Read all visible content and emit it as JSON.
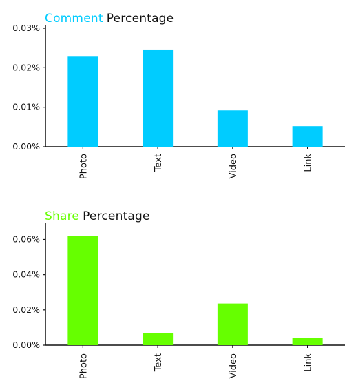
{
  "chart_data": [
    {
      "type": "bar",
      "title_accent": "Comment",
      "title_rest": "Percentage",
      "accent_color": "#00ccff",
      "categories": [
        "Photo",
        "Text",
        "Video",
        "Link"
      ],
      "values": [
        0.0228,
        0.0246,
        0.0092,
        0.0052
      ],
      "ylim": [
        0,
        0.03
      ],
      "yticks": [
        "0.00%",
        "0.01%",
        "0.02%",
        "0.03%"
      ],
      "ytick_values": [
        0,
        0.01,
        0.02,
        0.03
      ],
      "xlabel": "",
      "ylabel": "",
      "grid": false,
      "legend": "none"
    },
    {
      "type": "bar",
      "title_accent": "Share",
      "title_rest": "Percentage",
      "accent_color": "#66ff00",
      "categories": [
        "Photo",
        "Text",
        "Video",
        "Link"
      ],
      "values": [
        0.062,
        0.0068,
        0.0236,
        0.0042
      ],
      "ylim": [
        0,
        0.068
      ],
      "yticks": [
        "0.00%",
        "0.02%",
        "0.04%",
        "0.06%"
      ],
      "ytick_values": [
        0,
        0.02,
        0.04,
        0.06
      ],
      "xlabel": "",
      "ylabel": "",
      "grid": false,
      "legend": "none"
    }
  ]
}
